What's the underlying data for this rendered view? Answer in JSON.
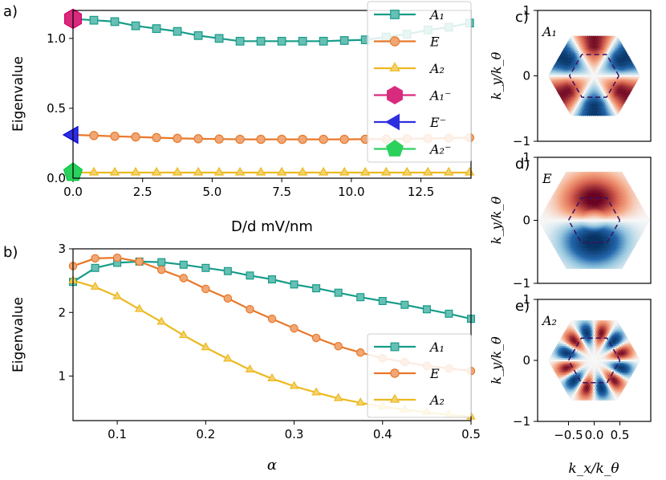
{
  "chart_data": [
    {
      "id": "a",
      "panel_label": "a)",
      "type": "line",
      "xlabel": "D/d mV/nm",
      "ylabel": "Eigenvalue",
      "xlim": [
        0,
        14.3
      ],
      "ylim": [
        0,
        1.2
      ],
      "xticks": [
        0.0,
        2.5,
        5.0,
        7.5,
        10.0,
        12.5
      ],
      "xtick_labels": [
        "0.0",
        "2.5",
        "5.0",
        "7.5",
        "10.0",
        "12.5"
      ],
      "yticks": [
        0.0,
        0.5,
        1.0
      ],
      "ytick_labels": [
        "0.0",
        "0.5",
        "1.0"
      ],
      "legend_position": "top-right",
      "series": [
        {
          "name": "A₁",
          "marker": "square",
          "color": "#179c8a",
          "x": [
            0,
            0.75,
            1.5,
            2.25,
            3.0,
            3.75,
            4.5,
            5.25,
            6.0,
            6.75,
            7.5,
            8.25,
            9.0,
            9.75,
            10.5,
            11.25,
            12.0,
            12.75,
            13.5,
            14.25
          ],
          "y": [
            1.14,
            1.13,
            1.12,
            1.09,
            1.07,
            1.05,
            1.02,
            1.0,
            0.98,
            0.98,
            0.98,
            0.98,
            0.98,
            0.985,
            0.99,
            1.01,
            1.03,
            1.06,
            1.08,
            1.11
          ]
        },
        {
          "name": "E",
          "marker": "circle",
          "color": "#e8782a",
          "x": [
            0,
            0.75,
            1.5,
            2.25,
            3.0,
            3.75,
            4.5,
            5.25,
            6.0,
            6.75,
            7.5,
            8.25,
            9.0,
            9.75,
            10.5,
            11.25,
            12.0,
            12.75,
            13.5,
            14.25
          ],
          "y": [
            0.31,
            0.305,
            0.3,
            0.295,
            0.29,
            0.285,
            0.282,
            0.28,
            0.278,
            0.278,
            0.278,
            0.278,
            0.278,
            0.278,
            0.279,
            0.28,
            0.282,
            0.284,
            0.287,
            0.29
          ]
        },
        {
          "name": "A₂",
          "marker": "triangle-up",
          "color": "#edb91f",
          "x": [
            0,
            0.75,
            1.5,
            2.25,
            3.0,
            3.75,
            4.5,
            5.25,
            6.0,
            6.75,
            7.5,
            8.25,
            9.0,
            9.75,
            10.5,
            11.25,
            12.0,
            12.75,
            13.5,
            14.25
          ],
          "y": [
            0.04,
            0.04,
            0.04,
            0.04,
            0.04,
            0.04,
            0.04,
            0.04,
            0.04,
            0.04,
            0.04,
            0.04,
            0.04,
            0.04,
            0.04,
            0.04,
            0.04,
            0.04,
            0.04,
            0.04
          ]
        },
        {
          "name": "A₁⁻",
          "marker": "hexagon",
          "color": "#d92b7d",
          "x": [
            0
          ],
          "y": [
            1.14
          ]
        },
        {
          "name": "E⁻",
          "marker": "triangle-left",
          "color": "#2e2ee0",
          "x": [
            0
          ],
          "y": [
            0.31
          ]
        },
        {
          "name": "A₂⁻",
          "marker": "pentagon",
          "color": "#2bd15d",
          "x": [
            0
          ],
          "y": [
            0.04
          ]
        }
      ]
    },
    {
      "id": "b",
      "panel_label": "b)",
      "type": "line",
      "xlabel": "α",
      "ylabel": "Eigenvalue",
      "xlim": [
        0.05,
        0.5
      ],
      "ylim": [
        0.3,
        3.0
      ],
      "xticks": [
        0.1,
        0.2,
        0.3,
        0.4,
        0.5
      ],
      "xtick_labels": [
        "0.1",
        "0.2",
        "0.3",
        "0.4",
        "0.5"
      ],
      "yticks": [
        1,
        2,
        3
      ],
      "ytick_labels": [
        "1",
        "2",
        "3"
      ],
      "legend_position": "lower-right",
      "series": [
        {
          "name": "A₁",
          "marker": "square",
          "color": "#179c8a",
          "x": [
            0.05,
            0.075,
            0.1,
            0.125,
            0.15,
            0.175,
            0.2,
            0.225,
            0.25,
            0.275,
            0.3,
            0.325,
            0.35,
            0.375,
            0.4,
            0.425,
            0.45,
            0.475,
            0.5
          ],
          "y": [
            2.48,
            2.7,
            2.78,
            2.8,
            2.79,
            2.75,
            2.7,
            2.65,
            2.58,
            2.52,
            2.44,
            2.38,
            2.31,
            2.24,
            2.18,
            2.12,
            2.05,
            1.98,
            1.9
          ]
        },
        {
          "name": "E",
          "marker": "circle",
          "color": "#e8782a",
          "x": [
            0.05,
            0.075,
            0.1,
            0.125,
            0.15,
            0.175,
            0.2,
            0.225,
            0.25,
            0.275,
            0.3,
            0.325,
            0.35,
            0.375,
            0.4,
            0.425,
            0.45,
            0.475,
            0.5
          ],
          "y": [
            2.73,
            2.85,
            2.86,
            2.8,
            2.67,
            2.54,
            2.37,
            2.22,
            2.05,
            1.9,
            1.75,
            1.6,
            1.47,
            1.37,
            1.28,
            1.22,
            1.16,
            1.12,
            1.08
          ]
        },
        {
          "name": "A₂",
          "marker": "triangle-up",
          "color": "#edb91f",
          "x": [
            0.05,
            0.075,
            0.1,
            0.125,
            0.15,
            0.175,
            0.2,
            0.225,
            0.25,
            0.275,
            0.3,
            0.325,
            0.35,
            0.375,
            0.4,
            0.425,
            0.45,
            0.475,
            0.5
          ],
          "y": [
            2.5,
            2.4,
            2.25,
            2.05,
            1.85,
            1.64,
            1.45,
            1.27,
            1.1,
            0.96,
            0.84,
            0.74,
            0.65,
            0.58,
            0.52,
            0.47,
            0.43,
            0.39,
            0.36
          ]
        }
      ]
    },
    {
      "id": "c",
      "panel_label": "c)",
      "type": "heatmap",
      "symmetry_label": "A₁",
      "xlabel": "",
      "ylabel": "k_y/k_θ",
      "xlim": [
        -1,
        1
      ],
      "ylim": [
        -1,
        1
      ],
      "ytick_labels": [
        "1",
        "0",
        "−1"
      ],
      "pattern": "a1"
    },
    {
      "id": "d",
      "panel_label": "d)",
      "type": "heatmap",
      "symmetry_label": "E",
      "xlabel": "",
      "ylabel": "k_y/k_θ",
      "xlim": [
        -1,
        1
      ],
      "ylim": [
        -1,
        1
      ],
      "ytick_labels": [
        "1",
        "0",
        "−1"
      ],
      "pattern": "e"
    },
    {
      "id": "e",
      "panel_label": "e)",
      "type": "heatmap",
      "symmetry_label": "A₂",
      "xlabel": "k_x/k_θ",
      "ylabel": "k_y/k_θ",
      "xlim": [
        -1,
        1
      ],
      "ylim": [
        -1,
        1
      ],
      "ytick_labels": [
        "1",
        "0",
        "−1"
      ],
      "xtick_labels": [
        "−0.5",
        "0.0",
        "0.5"
      ],
      "pattern": "a2"
    }
  ]
}
